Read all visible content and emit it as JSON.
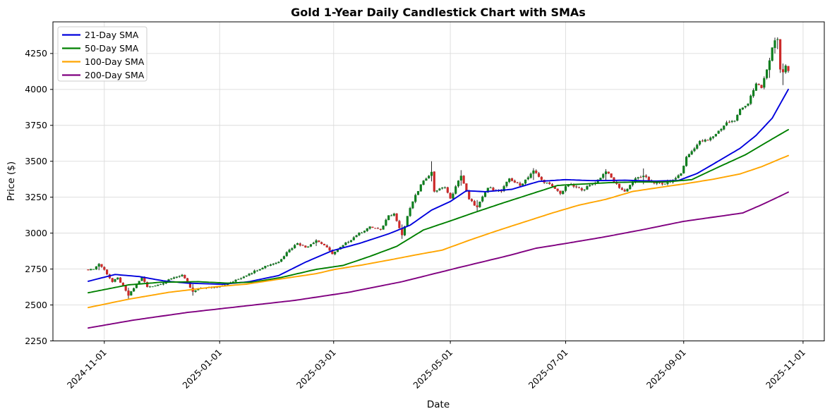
{
  "figure": {
    "title": "Gold 1-Year Daily Candlestick Chart with SMAs"
  },
  "chart_data": {
    "type": "candlestick",
    "title": "Gold 1-Year Daily Candlestick Chart with SMAs",
    "xlabel": "Date",
    "ylabel": "Price ($)",
    "grid": true,
    "legend_position": "upper left",
    "background": "#ffffff",
    "grid_color": "#dcdcdc",
    "spine_color": "#000000",
    "y_ticks": [
      2250,
      2500,
      2750,
      3000,
      3250,
      3500,
      3750,
      4000,
      4250
    ],
    "ylim": [
      2250,
      4470
    ],
    "x_tick_labels": [
      "2024-11-01",
      "2025-01-01",
      "2025-03-01",
      "2025-05-01",
      "2025-07-01",
      "2025-09-01",
      "2025-11-01"
    ],
    "start_date": "2024-10-24",
    "end_date": "2025-10-24",
    "frequency": "daily-weekdays",
    "candle_colors": {
      "up": "#0f7f1f",
      "down": "#cc2a2a",
      "wick": "#111111"
    },
    "noise": {
      "close_amp": 8,
      "wick_amp": 10,
      "open_amp": 2.5
    },
    "close_keyframes": [
      [
        "2024-10-24",
        2742
      ],
      [
        "2024-10-28",
        2750
      ],
      [
        "2024-10-30",
        2786,
        2792,
        2742
      ],
      [
        "2024-11-01",
        2745
      ],
      [
        "2024-11-06",
        2660
      ],
      [
        "2024-11-08",
        2690
      ],
      [
        "2024-11-14",
        2565,
        2620,
        2540
      ],
      [
        "2024-11-21",
        2695
      ],
      [
        "2024-11-25",
        2625
      ],
      [
        "2024-12-02",
        2645
      ],
      [
        "2024-12-09",
        2692
      ],
      [
        "2024-12-12",
        2710
      ],
      [
        "2024-12-18",
        2592,
        2645,
        2565
      ],
      [
        "2024-12-23",
        2618
      ],
      [
        "2024-12-31",
        2625
      ],
      [
        "2025-01-08",
        2662
      ],
      [
        "2025-01-16",
        2718
      ],
      [
        "2025-01-24",
        2772
      ],
      [
        "2025-01-31",
        2800
      ],
      [
        "2025-02-05",
        2868
      ],
      [
        "2025-02-11",
        2930
      ],
      [
        "2025-02-14",
        2900
      ],
      [
        "2025-02-20",
        2950,
        2958,
        2910
      ],
      [
        "2025-02-25",
        2915
      ],
      [
        "2025-02-28",
        2855
      ],
      [
        "2025-03-06",
        2915
      ],
      [
        "2025-03-13",
        2985
      ],
      [
        "2025-03-20",
        3045
      ],
      [
        "2025-03-26",
        3022
      ],
      [
        "2025-03-31",
        3125
      ],
      [
        "2025-04-02",
        3135
      ],
      [
        "2025-04-07",
        2985,
        3060,
        2960
      ],
      [
        "2025-04-10",
        3175
      ],
      [
        "2025-04-16",
        3340
      ],
      [
        "2025-04-22",
        3425,
        3500,
        3360
      ],
      [
        "2025-04-23",
        3290
      ],
      [
        "2025-04-29",
        3320
      ],
      [
        "2025-05-01",
        3240
      ],
      [
        "2025-05-07",
        3400,
        3438,
        3330
      ],
      [
        "2025-05-12",
        3235
      ],
      [
        "2025-05-15",
        3180,
        3230,
        3150
      ],
      [
        "2025-05-21",
        3315
      ],
      [
        "2025-05-28",
        3290
      ],
      [
        "2025-06-02",
        3380
      ],
      [
        "2025-06-06",
        3330
      ],
      [
        "2025-06-13",
        3435,
        3452,
        3370
      ],
      [
        "2025-06-18",
        3370
      ],
      [
        "2025-06-24",
        3325
      ],
      [
        "2025-06-27",
        3275
      ],
      [
        "2025-07-02",
        3340
      ],
      [
        "2025-07-09",
        3300
      ],
      [
        "2025-07-16",
        3350
      ],
      [
        "2025-07-22",
        3430,
        3445,
        3365
      ],
      [
        "2025-07-29",
        3315
      ],
      [
        "2025-07-31",
        3290
      ],
      [
        "2025-08-06",
        3380
      ],
      [
        "2025-08-11",
        3398,
        3450,
        3340
      ],
      [
        "2025-08-14",
        3355
      ],
      [
        "2025-08-20",
        3340
      ],
      [
        "2025-08-26",
        3370
      ],
      [
        "2025-08-29",
        3415
      ],
      [
        "2025-09-02",
        3530
      ],
      [
        "2025-09-05",
        3590
      ],
      [
        "2025-09-09",
        3640
      ],
      [
        "2025-09-12",
        3645
      ],
      [
        "2025-09-17",
        3690
      ],
      [
        "2025-09-23",
        3770
      ],
      [
        "2025-09-26",
        3780
      ],
      [
        "2025-09-30",
        3865
      ],
      [
        "2025-10-03",
        3900
      ],
      [
        "2025-10-08",
        4040
      ],
      [
        "2025-10-10",
        4010
      ],
      [
        "2025-10-14",
        4140
      ],
      [
        "2025-10-15",
        4200,
        4220,
        4080
      ],
      [
        "2025-10-16",
        4290
      ],
      [
        "2025-10-17",
        4340,
        4360,
        4250
      ],
      [
        "2025-10-20",
        4350,
        4362,
        4280
      ],
      [
        "2025-10-21",
        4140,
        4350,
        4115
      ],
      [
        "2025-10-22",
        4120,
        4180,
        4030
      ],
      [
        "2025-10-23",
        4165
      ],
      [
        "2025-10-24",
        4130
      ]
    ],
    "series": [
      {
        "name": "21-Day SMA",
        "color": "#0000dd",
        "keypoints": [
          [
            "2024-10-24",
            2665
          ],
          [
            "2024-11-07",
            2712
          ],
          [
            "2024-11-20",
            2698
          ],
          [
            "2024-12-03",
            2668
          ],
          [
            "2024-12-16",
            2652
          ],
          [
            "2025-01-02",
            2644
          ],
          [
            "2025-01-16",
            2662
          ],
          [
            "2025-01-31",
            2705
          ],
          [
            "2025-02-14",
            2798
          ],
          [
            "2025-02-28",
            2878
          ],
          [
            "2025-03-14",
            2928
          ],
          [
            "2025-03-31",
            2995
          ],
          [
            "2025-04-10",
            3055
          ],
          [
            "2025-04-22",
            3160
          ],
          [
            "2025-05-01",
            3220
          ],
          [
            "2025-05-09",
            3295
          ],
          [
            "2025-05-20",
            3288
          ],
          [
            "2025-06-03",
            3305
          ],
          [
            "2025-06-17",
            3360
          ],
          [
            "2025-07-01",
            3372
          ],
          [
            "2025-07-15",
            3365
          ],
          [
            "2025-07-31",
            3368
          ],
          [
            "2025-08-15",
            3362
          ],
          [
            "2025-08-28",
            3366
          ],
          [
            "2025-09-08",
            3415
          ],
          [
            "2025-09-16",
            3480
          ],
          [
            "2025-09-30",
            3590
          ],
          [
            "2025-10-08",
            3680
          ],
          [
            "2025-10-16",
            3800
          ],
          [
            "2025-10-24",
            4000
          ]
        ]
      },
      {
        "name": "50-Day SMA",
        "color": "#008000",
        "keypoints": [
          [
            "2024-10-24",
            2585
          ],
          [
            "2024-11-14",
            2640
          ],
          [
            "2024-12-02",
            2658
          ],
          [
            "2024-12-20",
            2662
          ],
          [
            "2025-01-06",
            2652
          ],
          [
            "2025-01-20",
            2660
          ],
          [
            "2025-02-03",
            2692
          ],
          [
            "2025-02-20",
            2748
          ],
          [
            "2025-03-06",
            2775
          ],
          [
            "2025-03-20",
            2838
          ],
          [
            "2025-04-03",
            2908
          ],
          [
            "2025-04-17",
            3022
          ],
          [
            "2025-05-01",
            3085
          ],
          [
            "2025-05-15",
            3150
          ],
          [
            "2025-05-29",
            3212
          ],
          [
            "2025-06-12",
            3272
          ],
          [
            "2025-06-26",
            3332
          ],
          [
            "2025-07-10",
            3342
          ],
          [
            "2025-07-24",
            3352
          ],
          [
            "2025-08-07",
            3356
          ],
          [
            "2025-08-21",
            3356
          ],
          [
            "2025-09-04",
            3372
          ],
          [
            "2025-09-18",
            3460
          ],
          [
            "2025-10-02",
            3545
          ],
          [
            "2025-10-16",
            3655
          ],
          [
            "2025-10-24",
            3720
          ]
        ]
      },
      {
        "name": "100-Day SMA",
        "color": "#ffa500",
        "keypoints": [
          [
            "2024-10-24",
            2482
          ],
          [
            "2024-11-14",
            2540
          ],
          [
            "2024-12-05",
            2588
          ],
          [
            "2024-12-31",
            2628
          ],
          [
            "2025-01-15",
            2645
          ],
          [
            "2025-02-03",
            2682
          ],
          [
            "2025-02-20",
            2718
          ],
          [
            "2025-03-03",
            2748
          ],
          [
            "2025-03-17",
            2778
          ],
          [
            "2025-03-31",
            2812
          ],
          [
            "2025-04-14",
            2848
          ],
          [
            "2025-04-28",
            2882
          ],
          [
            "2025-05-12",
            2950
          ],
          [
            "2025-05-27",
            3020
          ],
          [
            "2025-06-10",
            3080
          ],
          [
            "2025-06-24",
            3140
          ],
          [
            "2025-07-08",
            3195
          ],
          [
            "2025-07-22",
            3235
          ],
          [
            "2025-08-05",
            3290
          ],
          [
            "2025-08-19",
            3318
          ],
          [
            "2025-09-02",
            3345
          ],
          [
            "2025-09-16",
            3375
          ],
          [
            "2025-09-30",
            3412
          ],
          [
            "2025-10-10",
            3462
          ],
          [
            "2025-10-24",
            3540
          ]
        ]
      },
      {
        "name": "200-Day SMA",
        "color": "#800080",
        "keypoints": [
          [
            "2024-10-24",
            2340
          ],
          [
            "2024-11-18",
            2395
          ],
          [
            "2024-12-16",
            2448
          ],
          [
            "2025-01-13",
            2490
          ],
          [
            "2025-02-10",
            2532
          ],
          [
            "2025-03-10",
            2588
          ],
          [
            "2025-04-07",
            2662
          ],
          [
            "2025-05-05",
            2755
          ],
          [
            "2025-06-02",
            2845
          ],
          [
            "2025-06-16",
            2895
          ],
          [
            "2025-07-01",
            2928
          ],
          [
            "2025-07-21",
            2972
          ],
          [
            "2025-08-11",
            3025
          ],
          [
            "2025-09-01",
            3082
          ],
          [
            "2025-10-01",
            3140
          ],
          [
            "2025-10-13",
            3205
          ],
          [
            "2025-10-24",
            3285
          ]
        ]
      }
    ]
  }
}
